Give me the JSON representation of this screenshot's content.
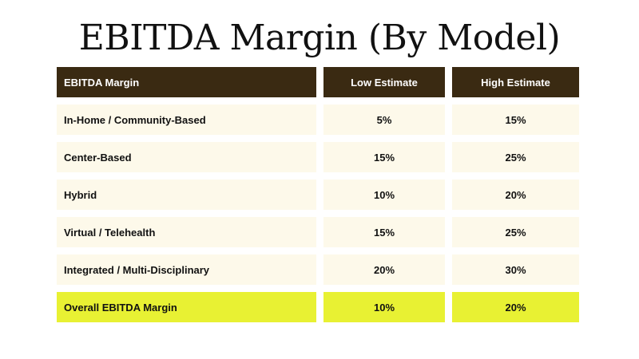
{
  "title": "EBITDA Margin (By Model)",
  "table": {
    "headers": [
      "EBITDA Margin",
      "Low Estimate",
      "High Estimate"
    ],
    "rows": [
      {
        "label": "In-Home / Community-Based",
        "low": "5%",
        "high": "15%"
      },
      {
        "label": "Center-Based",
        "low": "15%",
        "high": "25%"
      },
      {
        "label": "Hybrid",
        "low": "10%",
        "high": "20%"
      },
      {
        "label": "Virtual / Telehealth",
        "low": "15%",
        "high": "25%"
      },
      {
        "label": "Integrated / Multi-Disciplinary",
        "low": "20%",
        "high": "30%"
      }
    ],
    "total": {
      "label": "Overall EBITDA Margin",
      "low": "10%",
      "high": "20%"
    }
  },
  "colors": {
    "header_bg": "#3a2a12",
    "row_bg": "#fdf9ea",
    "total_bg": "#e8f133"
  }
}
